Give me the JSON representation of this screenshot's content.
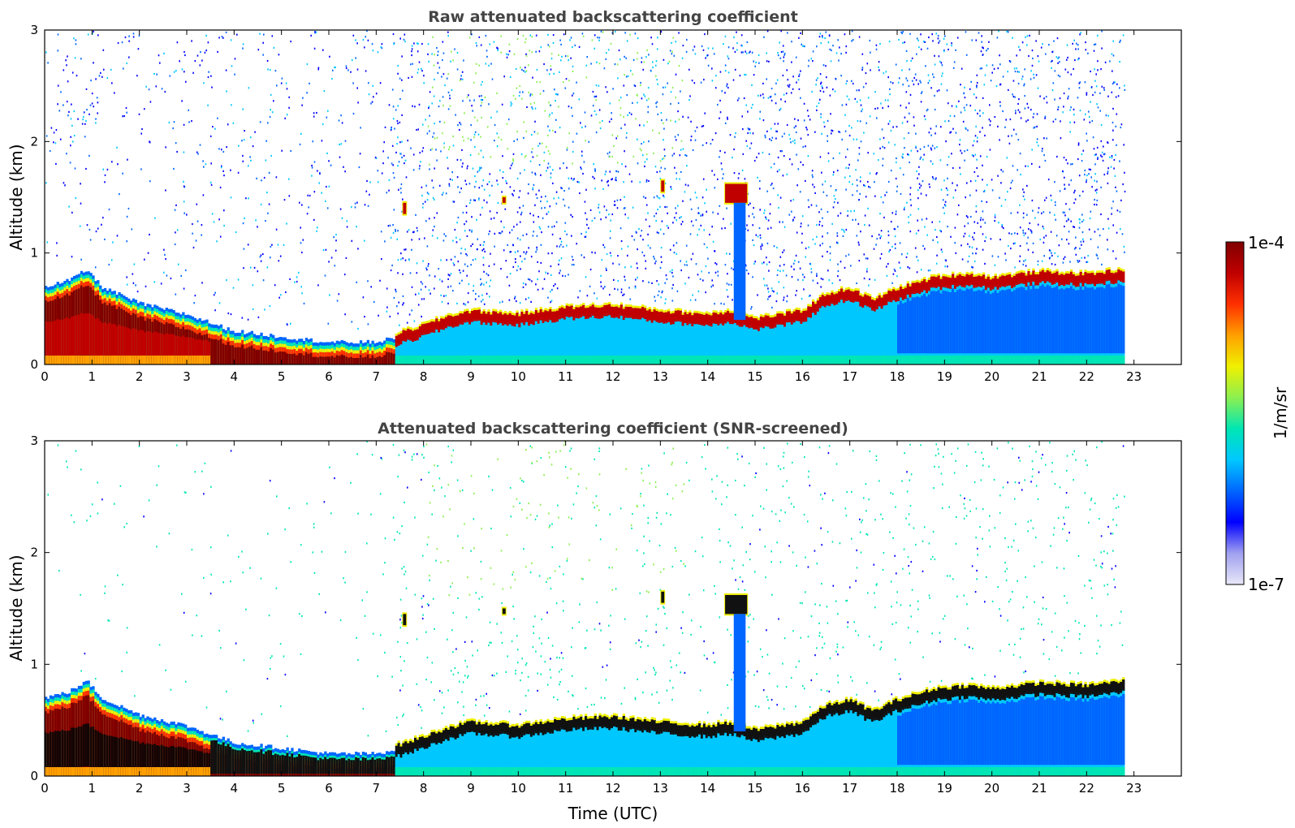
{
  "chart_data": [
    {
      "type": "heatmap",
      "title": "Raw attenuated backscattering coefficient",
      "xlabel": "",
      "ylabel": "Altitude (km)",
      "xlim": [
        0,
        24
      ],
      "ylim": [
        0,
        3
      ],
      "xticks": [
        "0",
        "1",
        "2",
        "3",
        "4",
        "5",
        "6",
        "7",
        "8",
        "9",
        "10",
        "11",
        "12",
        "13",
        "14",
        "15",
        "16",
        "17",
        "18",
        "19",
        "20",
        "21",
        "22",
        "23"
      ],
      "yticks": [
        "0",
        "1",
        "2",
        "3"
      ],
      "data_end_time": 22.8,
      "noise_start_time": 7.3,
      "layer_top_km": {
        "time": [
          0,
          0.5,
          0.9,
          1.2,
          2,
          3,
          4,
          5,
          6,
          7,
          7.5,
          8,
          8.5,
          9,
          10,
          11,
          12,
          13,
          14,
          14.5,
          15,
          16,
          16.5,
          17,
          17.5,
          18,
          18.8,
          19.5,
          20,
          21,
          22,
          22.8
        ],
        "values": [
          0.7,
          0.75,
          0.85,
          0.7,
          0.55,
          0.45,
          0.3,
          0.25,
          0.2,
          0.2,
          0.25,
          0.32,
          0.4,
          0.45,
          0.42,
          0.48,
          0.5,
          0.45,
          0.42,
          0.45,
          0.38,
          0.45,
          0.6,
          0.65,
          0.55,
          0.65,
          0.75,
          0.78,
          0.75,
          0.8,
          0.78,
          0.82
        ]
      },
      "cloud_features": [
        {
          "time": [
            7.55,
            7.65
          ],
          "alt": [
            1.35,
            1.45
          ]
        },
        {
          "time": [
            9.65,
            9.75
          ],
          "alt": [
            1.45,
            1.5
          ]
        },
        {
          "time": [
            13.0,
            13.1
          ],
          "alt": [
            1.55,
            1.65
          ]
        },
        {
          "time": [
            14.35,
            14.85
          ],
          "alt": [
            1.45,
            1.62
          ]
        }
      ]
    },
    {
      "type": "heatmap",
      "title": "Attenuated backscattering coefficient (SNR-screened)",
      "xlabel": "Time (UTC)",
      "ylabel": "Altitude (km)",
      "xlim": [
        0,
        24
      ],
      "ylim": [
        0,
        3
      ],
      "xticks": [
        "0",
        "1",
        "2",
        "3",
        "4",
        "5",
        "6",
        "7",
        "8",
        "9",
        "10",
        "11",
        "12",
        "13",
        "14",
        "15",
        "16",
        "17",
        "18",
        "19",
        "20",
        "21",
        "22",
        "23"
      ],
      "yticks": [
        "0",
        "1",
        "2",
        "3"
      ],
      "data_end_time": 22.8,
      "noise_start_time": 7.3
    }
  ],
  "colorbar": {
    "label": "1/m/sr",
    "max_label": "1e-4",
    "min_label": "1e-7",
    "scale": "log",
    "range": [
      1e-07,
      0.0001
    ],
    "colormap": [
      "#e8e8f8",
      "#a0a0f0",
      "#0000ff",
      "#0066ff",
      "#00c8ff",
      "#00e6b4",
      "#8cf050",
      "#f0f000",
      "#ffa000",
      "#ff3000",
      "#c00000",
      "#800000"
    ]
  }
}
